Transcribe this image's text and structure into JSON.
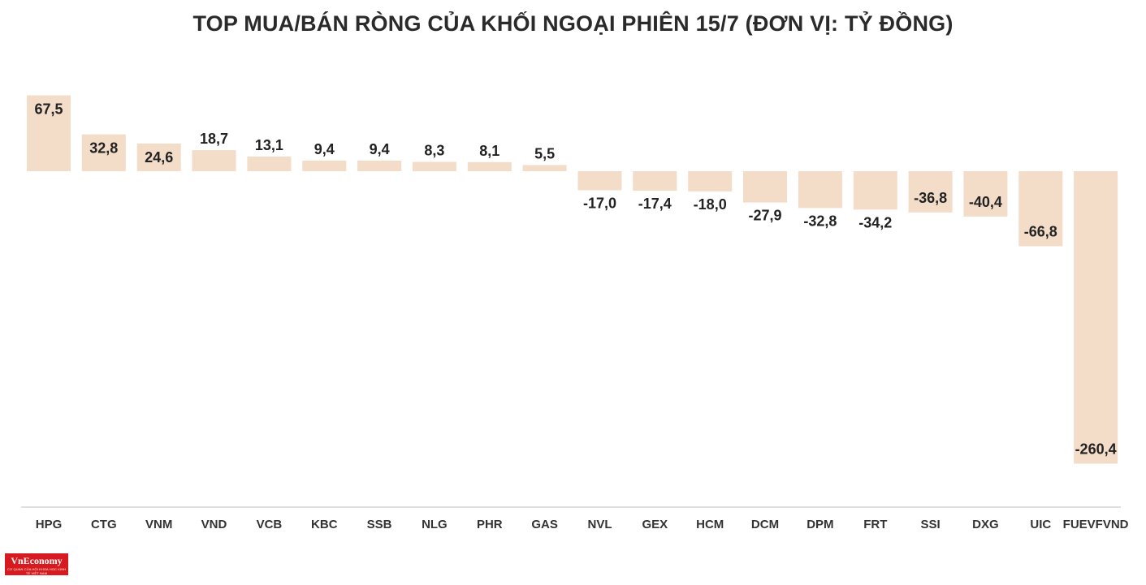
{
  "chart_data": {
    "type": "bar",
    "title": "TOP MUA/BÁN RÒNG CỦA KHỐI NGOẠI PHIÊN 15/7 (ĐƠN VỊ: TỶ ĐỒNG)",
    "xlabel": "",
    "ylabel": "",
    "categories": [
      "HPG",
      "CTG",
      "VNM",
      "VND",
      "VCB",
      "KBC",
      "SSB",
      "NLG",
      "PHR",
      "GAS",
      "NVL",
      "GEX",
      "HCM",
      "DCM",
      "DPM",
      "FRT",
      "SSI",
      "DXG",
      "UIC",
      "FUEVFVND"
    ],
    "values": [
      67.5,
      32.8,
      24.6,
      18.7,
      13.1,
      9.4,
      9.4,
      8.3,
      8.1,
      5.5,
      -17.0,
      -17.4,
      -18.0,
      -27.9,
      -32.8,
      -34.2,
      -36.8,
      -40.4,
      -66.8,
      -260.4
    ],
    "value_labels": [
      "67,5",
      "32,8",
      "24,6",
      "18,7",
      "13,1",
      "9,4",
      "9,4",
      "8,3",
      "8,1",
      "5,5",
      "-17,0",
      "-17,4",
      "-18,0",
      "-27,9",
      "-32,8",
      "-34,2",
      "-36,8",
      "-40,4",
      "-66,8",
      "-260,4"
    ],
    "ylim": [
      -300,
      75
    ],
    "grid": false,
    "legend": "none",
    "bar_color": "#f3dcc8"
  },
  "logo": {
    "text": "VnEconomy",
    "tagline": "CƠ QUAN CỦA HỘI KHOA HỌC KINH TẾ VIỆT NAM",
    "color": "#d71920"
  }
}
